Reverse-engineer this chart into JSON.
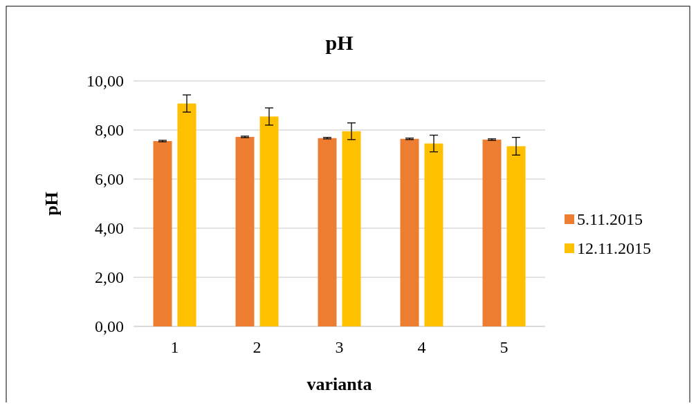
{
  "chart_data": {
    "type": "bar",
    "title": "pH",
    "xlabel": "varianta",
    "ylabel": "pH",
    "categories": [
      "1",
      "2",
      "3",
      "4",
      "5"
    ],
    "series": [
      {
        "name": "5.11.2015",
        "color": "#ed7d31",
        "values": [
          7.55,
          7.72,
          7.67,
          7.64,
          7.61
        ],
        "errors": [
          0.03,
          0.03,
          0.03,
          0.03,
          0.03
        ]
      },
      {
        "name": "12.11.2015",
        "color": "#ffc000",
        "values": [
          9.08,
          8.55,
          7.95,
          7.45,
          7.34
        ],
        "errors": [
          0.35,
          0.35,
          0.34,
          0.34,
          0.36
        ]
      }
    ],
    "ylim": [
      0,
      10
    ],
    "yticks": [
      {
        "value": 0,
        "label": "0,00"
      },
      {
        "value": 2,
        "label": "2,00"
      },
      {
        "value": 4,
        "label": "4,00"
      },
      {
        "value": 6,
        "label": "6,00"
      },
      {
        "value": 8,
        "label": "8,00"
      },
      {
        "value": 10,
        "label": "10,00"
      }
    ],
    "grid": "y",
    "legend": "right"
  }
}
